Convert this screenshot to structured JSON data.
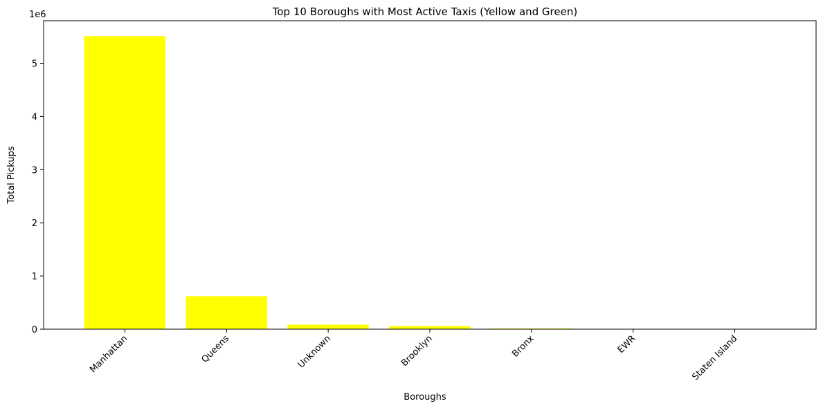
{
  "chart_data": {
    "type": "bar",
    "title": "Top 10 Boroughs with Most Active Taxis (Yellow and Green)",
    "xlabel": "Boroughs",
    "ylabel": "Total Pickups",
    "y_offset_label": "1e6",
    "categories": [
      "Manhattan",
      "Queens",
      "Unknown",
      "Brooklyn",
      "Bronx",
      "EWR",
      "Staten Island"
    ],
    "values": [
      5510000,
      620000,
      85000,
      60000,
      15000,
      1000,
      500
    ],
    "ylim": [
      0,
      5800000
    ],
    "yticks": [
      0,
      1000000,
      2000000,
      3000000,
      4000000,
      5000000
    ],
    "ytick_labels": [
      "0",
      "1",
      "2",
      "3",
      "4",
      "5"
    ],
    "bar_color": "#ffff00",
    "grid": false,
    "legend": "none"
  }
}
